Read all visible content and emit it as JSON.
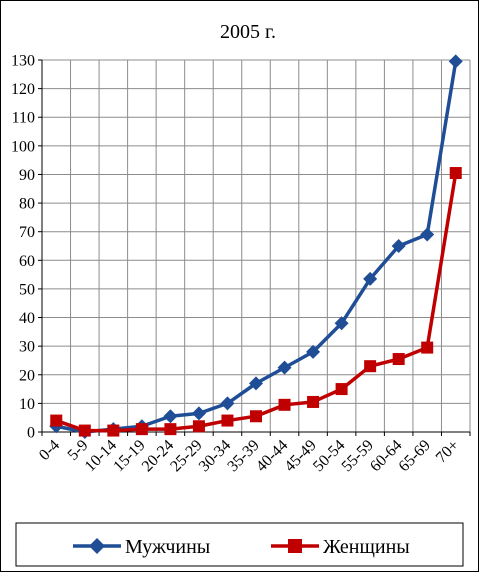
{
  "chart_data": {
    "type": "line",
    "title": "2005 г.",
    "xlabel": "",
    "ylabel": "",
    "categories": [
      "0-4",
      "5-9",
      "10-14",
      "15-19",
      "20-24",
      "25-29",
      "30-34",
      "35-39",
      "40-44",
      "45-49",
      "50-54",
      "55-59",
      "60-64",
      "65-69",
      "70+"
    ],
    "ylim": [
      0,
      130
    ],
    "yticks": [
      0,
      10,
      20,
      30,
      40,
      50,
      60,
      70,
      80,
      90,
      100,
      110,
      120,
      130
    ],
    "grid": "horizontal and vertical",
    "legend_placement": "bottom",
    "series": [
      {
        "name": "Мужчины",
        "color": "#1F4E96",
        "marker": "diamond",
        "values": [
          2,
          0,
          1,
          2,
          5.5,
          6.5,
          10,
          17,
          22.5,
          28,
          38,
          53.5,
          65,
          69,
          129.5
        ]
      },
      {
        "name": "Женщины",
        "color": "#C00000",
        "marker": "square",
        "values": [
          4,
          0.5,
          0.5,
          1,
          1,
          2,
          4,
          5.5,
          9.5,
          10.5,
          15,
          23,
          25.5,
          29.5,
          90.5
        ]
      }
    ]
  }
}
